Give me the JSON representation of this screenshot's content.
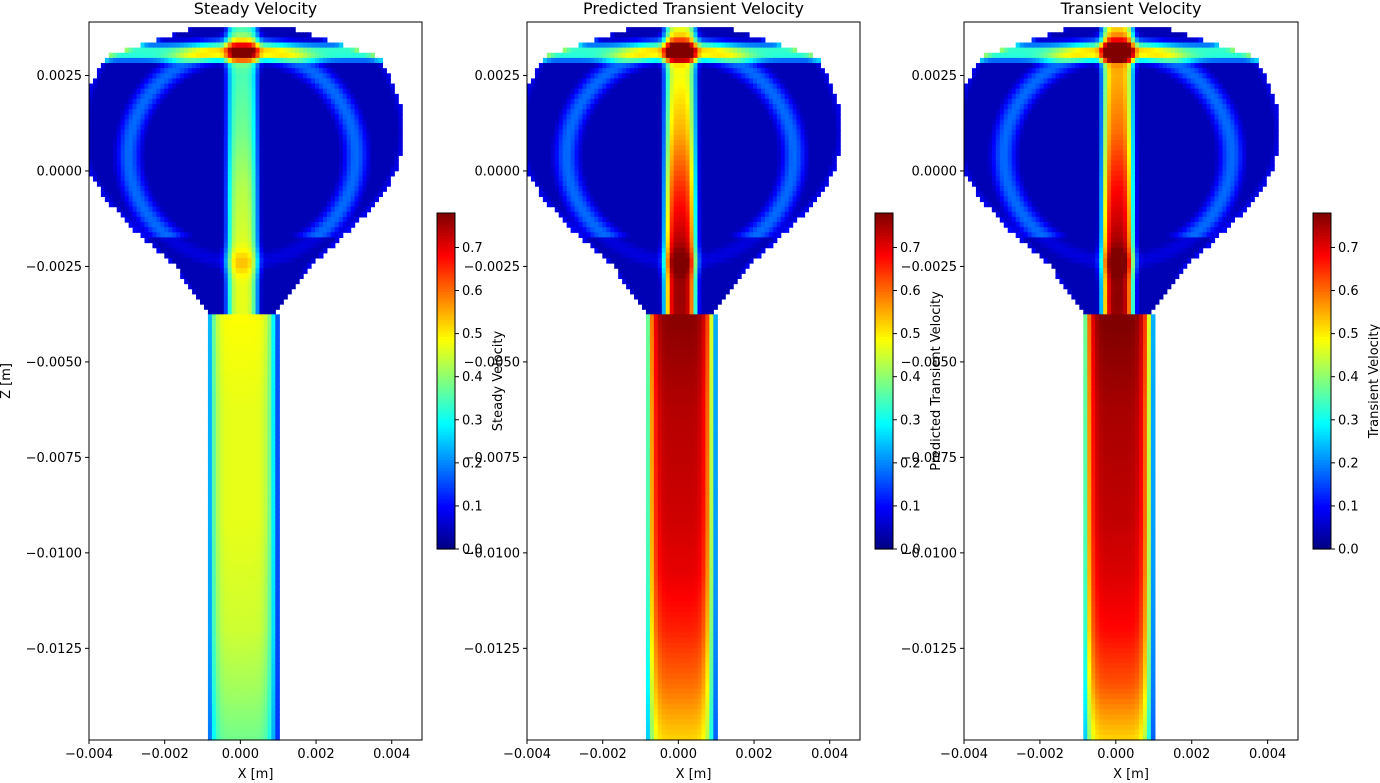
{
  "chart_data": [
    {
      "type": "heatmap",
      "title": "Steady Velocity",
      "xlabel": "X [m]",
      "ylabel": "Z [m]",
      "xlim": [
        -0.004,
        0.0048
      ],
      "ylim": [
        -0.0149,
        0.0039
      ],
      "xticks": [
        "−0.004",
        "−0.002",
        "0.000",
        "0.002",
        "0.004"
      ],
      "xtick_values": [
        -0.004,
        -0.002,
        0.0,
        0.002,
        0.004
      ],
      "yticks": [
        "0.0025",
        "0.0000",
        "−0.0025",
        "−0.0050",
        "−0.0075",
        "−0.0100",
        "−0.0125"
      ],
      "ytick_values": [
        0.0025,
        0.0,
        -0.0025,
        -0.005,
        -0.0075,
        -0.01,
        -0.0125
      ],
      "colorbar_label": "Steady Velocity",
      "colorbar_range": [
        0.0,
        0.78
      ],
      "colorbar_ticks": [
        "0.0",
        "0.1",
        "0.2",
        "0.3",
        "0.4",
        "0.5",
        "0.6",
        "0.7"
      ],
      "colorbar_tick_values": [
        0.0,
        0.1,
        0.2,
        0.3,
        0.4,
        0.5,
        0.6,
        0.7
      ],
      "colormap": "jet",
      "core_velocity_profile": [
        0.33,
        0.35,
        0.38,
        0.43,
        0.46,
        0.47,
        0.46,
        0.45,
        0.45,
        0.45,
        0.44,
        0.43,
        0.4,
        0.36
      ]
    },
    {
      "type": "heatmap",
      "title": "Predicted Transient Velocity",
      "xlabel": "X [m]",
      "ylabel": "",
      "xlim": [
        -0.004,
        0.0048
      ],
      "ylim": [
        -0.0149,
        0.0039
      ],
      "xticks": [
        "−0.004",
        "−0.002",
        "0.000",
        "0.002",
        "0.004"
      ],
      "xtick_values": [
        -0.004,
        -0.002,
        0.0,
        0.002,
        0.004
      ],
      "yticks": [
        "0.0025",
        "0.0000",
        "−0.0025",
        "−0.0050",
        "−0.0075",
        "−0.0100",
        "−0.0125"
      ],
      "ytick_values": [
        0.0025,
        0.0,
        -0.0025,
        -0.005,
        -0.0075,
        -0.01,
        -0.0125
      ],
      "colorbar_label": "Predicted Transient Velocity",
      "colorbar_range": [
        0.0,
        0.78
      ],
      "colorbar_ticks": [
        "0.0",
        "0.1",
        "0.2",
        "0.3",
        "0.4",
        "0.5",
        "0.6",
        "0.7"
      ],
      "colorbar_tick_values": [
        0.0,
        0.1,
        0.2,
        0.3,
        0.4,
        0.5,
        0.6,
        0.7
      ],
      "colormap": "jet",
      "core_velocity_profile": [
        0.45,
        0.48,
        0.55,
        0.65,
        0.74,
        0.76,
        0.74,
        0.72,
        0.71,
        0.7,
        0.68,
        0.64,
        0.58,
        0.5
      ]
    },
    {
      "type": "heatmap",
      "title": "Transient Velocity",
      "xlabel": "X [m]",
      "ylabel": "",
      "xlim": [
        -0.004,
        0.0048
      ],
      "ylim": [
        -0.0149,
        0.0039
      ],
      "xticks": [
        "−0.004",
        "−0.002",
        "0.000",
        "0.002",
        "0.004"
      ],
      "xtick_values": [
        -0.004,
        -0.002,
        0.0,
        0.002,
        0.004
      ],
      "yticks": [
        "0.0025",
        "0.0000",
        "−0.0025",
        "−0.0050",
        "−0.0075",
        "−0.0100",
        "−0.0125"
      ],
      "ytick_values": [
        0.0025,
        0.0,
        -0.0025,
        -0.005,
        -0.0075,
        -0.01,
        -0.0125
      ],
      "colorbar_label": "Transient Velocity",
      "colorbar_range": [
        0.0,
        0.78
      ],
      "colorbar_ticks": [
        "0.0",
        "0.1",
        "0.2",
        "0.3",
        "0.4",
        "0.5",
        "0.6",
        "0.7"
      ],
      "colorbar_tick_values": [
        0.0,
        0.1,
        0.2,
        0.3,
        0.4,
        0.5,
        0.6,
        0.7
      ],
      "colormap": "jet",
      "core_velocity_profile": [
        0.5,
        0.55,
        0.6,
        0.68,
        0.75,
        0.77,
        0.75,
        0.73,
        0.72,
        0.71,
        0.69,
        0.66,
        0.6,
        0.5
      ]
    }
  ]
}
